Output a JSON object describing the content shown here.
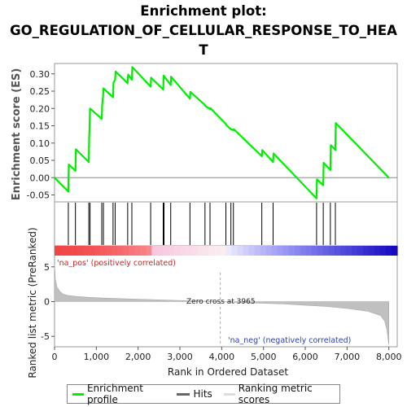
{
  "title": {
    "line1": "Enrichment plot:",
    "line2": "GO_REGULATION_OF_CELLULAR_RESPONSE_TO_HEA",
    "line3": "T"
  },
  "colors": {
    "enrichment": "#00ee00",
    "hits": "#000000",
    "ranking": "#c0c0c0",
    "pos_label": "#d42020",
    "neg_label": "#2a3fb8"
  },
  "chart_data": [
    {
      "type": "line",
      "name": "enrichment-profile",
      "ylabel": "Enrichment score (ES)",
      "xlim": [
        0,
        8200
      ],
      "ylim": [
        -0.07,
        0.33
      ],
      "yticks": [
        -0.05,
        0.0,
        0.05,
        0.1,
        0.15,
        0.2,
        0.25,
        0.3
      ],
      "ytick_labels": [
        "-0.05",
        "0.00",
        "0.05",
        "0.10",
        "0.15",
        "0.20",
        "0.25",
        "0.30"
      ],
      "grid": false,
      "x": [
        0,
        330,
        340,
        500,
        510,
        820,
        825,
        830,
        840,
        850,
        1130,
        1140,
        1160,
        1170,
        1400,
        1410,
        1450,
        1460,
        1750,
        1760,
        1850,
        1860,
        2300,
        2310,
        2600,
        2610,
        2780,
        2790,
        3240,
        3250,
        3600,
        3610,
        3720,
        3730,
        4100,
        4110,
        4220,
        4230,
        4280,
        4290,
        4960,
        4970,
        5230,
        5240,
        6270,
        6280,
        6430,
        6440,
        6600,
        6610,
        6720,
        6730,
        8000
      ],
      "y": [
        0.0,
        -0.04,
        0.038,
        0.02,
        0.082,
        0.045,
        0.095,
        0.12,
        0.15,
        0.2,
        0.17,
        0.21,
        0.235,
        0.258,
        0.232,
        0.275,
        0.283,
        0.307,
        0.273,
        0.298,
        0.283,
        0.32,
        0.263,
        0.289,
        0.255,
        0.295,
        0.268,
        0.292,
        0.228,
        0.248,
        0.21,
        0.207,
        0.198,
        0.201,
        0.155,
        0.152,
        0.14,
        0.14,
        0.137,
        0.14,
        0.062,
        0.08,
        0.045,
        0.07,
        -0.06,
        -0.005,
        -0.022,
        0.043,
        0.022,
        0.094,
        0.08,
        0.158,
        0.0
      ]
    },
    {
      "type": "scatter",
      "name": "hits",
      "x": [
        330,
        500,
        820,
        850,
        1130,
        1170,
        1400,
        1450,
        1750,
        1850,
        2300,
        2600,
        2620,
        2780,
        3240,
        3600,
        3720,
        4100,
        4220,
        4280,
        4960,
        5230,
        6270,
        6430,
        6600,
        6720
      ]
    },
    {
      "type": "area",
      "name": "ranking-metric-scores",
      "ylabel": "Ranked list metric (PreRanked)",
      "xlabel": "Rank in Ordered Dataset",
      "xlim": [
        0,
        8200
      ],
      "ylim": [
        -6.5,
        6.5
      ],
      "yticks": [
        -5,
        0,
        5
      ],
      "ytick_labels": [
        "-5",
        "0",
        "5"
      ],
      "xticks": [
        0,
        1000,
        2000,
        3000,
        4000,
        5000,
        6000,
        7000,
        8000
      ],
      "xtick_labels": [
        "0",
        "1,000",
        "2,000",
        "3,000",
        "4,000",
        "5,000",
        "6,000",
        "7,000",
        "8,000"
      ],
      "x": [
        0,
        20,
        60,
        120,
        200,
        300,
        500,
        800,
        1200,
        2000,
        3000,
        3965,
        4500,
        5500,
        6500,
        7000,
        7500,
        7800,
        7900,
        7950,
        8000
      ],
      "y": [
        5.4,
        3.2,
        2.1,
        1.5,
        1.1,
        0.9,
        0.75,
        0.62,
        0.5,
        0.35,
        0.15,
        0.0,
        -0.15,
        -0.35,
        -0.7,
        -1.0,
        -1.4,
        -2.0,
        -2.8,
        -4.0,
        -6.2
      ],
      "zero_cross": 3965
    }
  ],
  "annotations": {
    "pos": "'na_pos' (positively correlated)",
    "neg": "'na_neg' (negatively correlated)",
    "zero_cross": "Zero cross at 3965"
  },
  "legend": {
    "items": [
      {
        "label": "Enrichment profile"
      },
      {
        "label": "Hits"
      },
      {
        "label": "Ranking metric scores"
      }
    ]
  }
}
